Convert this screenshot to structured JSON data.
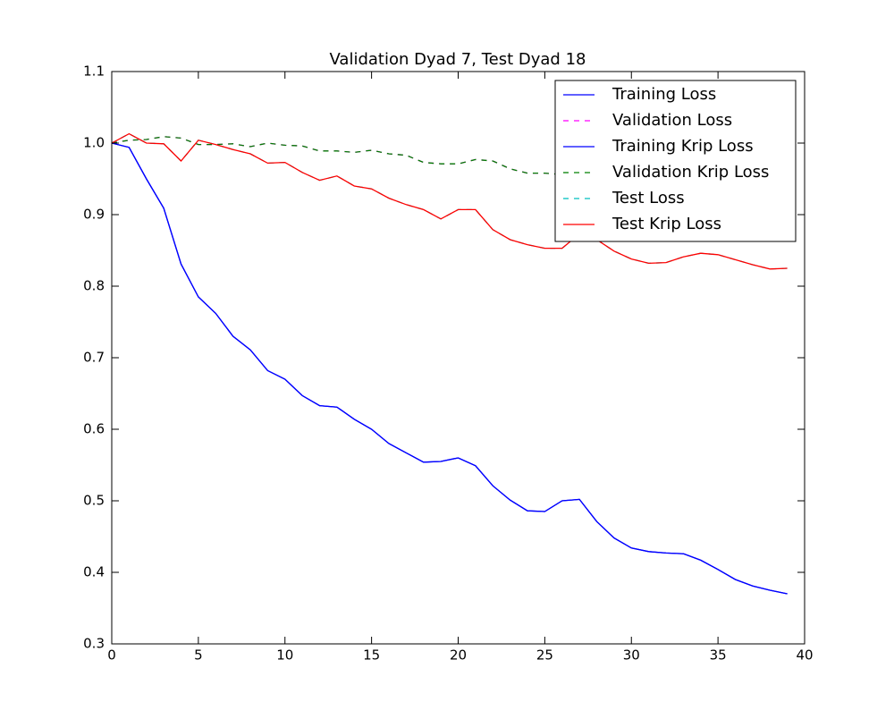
{
  "chart_data": {
    "type": "line",
    "title": "Validation Dyad 7, Test Dyad 18",
    "x": [
      0,
      1,
      2,
      3,
      4,
      5,
      6,
      7,
      8,
      9,
      10,
      11,
      12,
      13,
      14,
      15,
      16,
      17,
      18,
      19,
      20,
      21,
      22,
      23,
      24,
      25,
      26,
      27,
      28,
      29,
      30,
      31,
      32,
      33,
      34,
      35,
      36,
      37,
      38,
      39
    ],
    "series": [
      {
        "name": "Training Loss",
        "color": "#0000ff",
        "style": "solid",
        "values": [
          1.0,
          0.994,
          0.95,
          0.909,
          0.831,
          0.785,
          0.762,
          0.73,
          0.711,
          0.682,
          0.67,
          0.647,
          0.633,
          0.631,
          0.614,
          0.6,
          0.58,
          0.567,
          0.554,
          0.555,
          0.56,
          0.549,
          0.521,
          0.501,
          0.486,
          0.485,
          0.5,
          0.502,
          0.471,
          0.448,
          0.434,
          0.429,
          0.427,
          0.426,
          0.417,
          0.404,
          0.39,
          0.381,
          0.375,
          0.37
        ]
      },
      {
        "name": "Validation Loss",
        "color": "#ff00ff",
        "style": "dashed",
        "values": [
          1.0,
          1.004,
          1.005,
          1.009,
          1.007,
          0.998,
          0.998,
          0.999,
          0.995,
          1.0,
          0.997,
          0.996,
          0.989,
          0.989,
          0.987,
          0.99,
          0.985,
          0.983,
          0.973,
          0.971,
          0.971,
          0.977,
          0.975,
          0.964,
          0.958,
          0.958,
          0.956,
          0.955,
          0.952,
          0.95,
          0.948,
          0.945,
          0.943,
          0.94,
          0.938,
          0.936,
          0.935,
          0.933,
          0.931,
          0.93
        ]
      },
      {
        "name": "Training Krip Loss",
        "color": "#0000ff",
        "style": "solid",
        "values": [
          1.0,
          0.994,
          0.95,
          0.909,
          0.831,
          0.785,
          0.762,
          0.73,
          0.711,
          0.682,
          0.67,
          0.647,
          0.633,
          0.631,
          0.614,
          0.6,
          0.58,
          0.567,
          0.554,
          0.555,
          0.56,
          0.549,
          0.521,
          0.501,
          0.486,
          0.485,
          0.5,
          0.502,
          0.471,
          0.448,
          0.434,
          0.429,
          0.427,
          0.426,
          0.417,
          0.404,
          0.39,
          0.381,
          0.375,
          0.37
        ]
      },
      {
        "name": "Validation Krip Loss",
        "color": "#008000",
        "style": "dashed",
        "values": [
          1.0,
          1.004,
          1.005,
          1.009,
          1.007,
          0.998,
          0.998,
          0.999,
          0.995,
          1.0,
          0.997,
          0.996,
          0.989,
          0.989,
          0.987,
          0.99,
          0.985,
          0.983,
          0.973,
          0.971,
          0.971,
          0.977,
          0.975,
          0.964,
          0.958,
          0.958,
          0.956,
          0.955,
          0.952,
          0.95,
          0.948,
          0.945,
          0.943,
          0.94,
          0.938,
          0.936,
          0.935,
          0.933,
          0.931,
          0.93
        ]
      },
      {
        "name": "Test Loss",
        "color": "#00bfbf",
        "style": "dashed",
        "values": [
          1.0,
          1.013,
          1.0,
          0.999,
          0.975,
          1.004,
          0.998,
          0.991,
          0.985,
          0.972,
          0.973,
          0.959,
          0.948,
          0.954,
          0.94,
          0.936,
          0.923,
          0.914,
          0.907,
          0.894,
          0.907,
          0.907,
          0.879,
          0.865,
          0.858,
          0.853,
          0.853,
          0.873,
          0.865,
          0.849,
          0.838,
          0.832,
          0.833,
          0.841,
          0.846,
          0.844,
          0.837,
          0.83,
          0.824,
          0.825
        ]
      },
      {
        "name": "Test Krip Loss",
        "color": "#ff0000",
        "style": "solid",
        "values": [
          1.0,
          1.013,
          1.0,
          0.999,
          0.975,
          1.004,
          0.998,
          0.991,
          0.985,
          0.972,
          0.973,
          0.959,
          0.948,
          0.954,
          0.94,
          0.936,
          0.923,
          0.914,
          0.907,
          0.894,
          0.907,
          0.907,
          0.879,
          0.865,
          0.858,
          0.853,
          0.853,
          0.873,
          0.865,
          0.849,
          0.838,
          0.832,
          0.833,
          0.841,
          0.846,
          0.844,
          0.837,
          0.83,
          0.824,
          0.825
        ]
      }
    ],
    "xlim": [
      0,
      40
    ],
    "xticks": [
      0,
      5,
      10,
      15,
      20,
      25,
      30,
      35,
      40
    ],
    "ylim": [
      0.3,
      1.1
    ],
    "yticks": [
      0.3,
      0.4,
      0.5,
      0.6,
      0.7,
      0.8,
      0.9,
      {
        "value": 1.0,
        "label": "1.0"
      },
      1.1
    ],
    "grid": false,
    "legend": "upper right"
  }
}
